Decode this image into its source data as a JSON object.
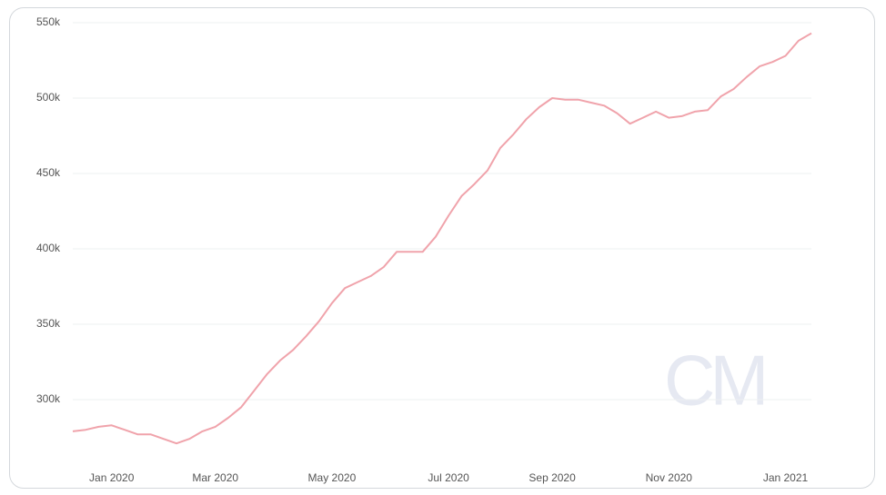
{
  "chart_data": {
    "type": "line",
    "watermark": "CM",
    "categories": [
      null,
      null,
      null,
      "Jan 2020",
      null,
      null,
      null,
      null,
      null,
      null,
      null,
      "Mar 2020",
      null,
      null,
      null,
      null,
      null,
      null,
      null,
      null,
      "May 2020",
      null,
      null,
      null,
      null,
      null,
      null,
      null,
      null,
      "Jul 2020",
      null,
      null,
      null,
      null,
      null,
      null,
      null,
      "Sep 2020",
      null,
      null,
      null,
      null,
      null,
      null,
      null,
      null,
      "Nov 2020",
      null,
      null,
      null,
      null,
      null,
      null,
      null,
      null,
      "Jan 2021",
      null,
      null
    ],
    "series": [
      {
        "color": "#f0a3ab",
        "values": [
          279000,
          280000,
          282000,
          283000,
          280000,
          277000,
          277000,
          274000,
          271000,
          274000,
          279000,
          282000,
          288000,
          295000,
          306000,
          317000,
          326000,
          333000,
          342000,
          352000,
          364000,
          374000,
          378000,
          382000,
          388000,
          398000,
          398000,
          398000,
          408000,
          422000,
          435000,
          443000,
          452000,
          467000,
          476000,
          486000,
          494000,
          500000,
          499000,
          499000,
          497000,
          495000,
          490000,
          483000,
          487000,
          491000,
          487000,
          488000,
          491000,
          492000,
          501000,
          506000,
          514000,
          521000,
          524000,
          528000,
          538000,
          543000
        ]
      }
    ],
    "ylim": [
      264000,
      550000
    ],
    "yticks": [
      {
        "value": 300000,
        "label": "300k"
      },
      {
        "value": 350000,
        "label": "350k"
      },
      {
        "value": 400000,
        "label": "400k"
      },
      {
        "value": 450000,
        "label": "450k"
      },
      {
        "value": 500000,
        "label": "500k"
      },
      {
        "value": 550000,
        "label": "550k"
      }
    ],
    "grid": true
  }
}
